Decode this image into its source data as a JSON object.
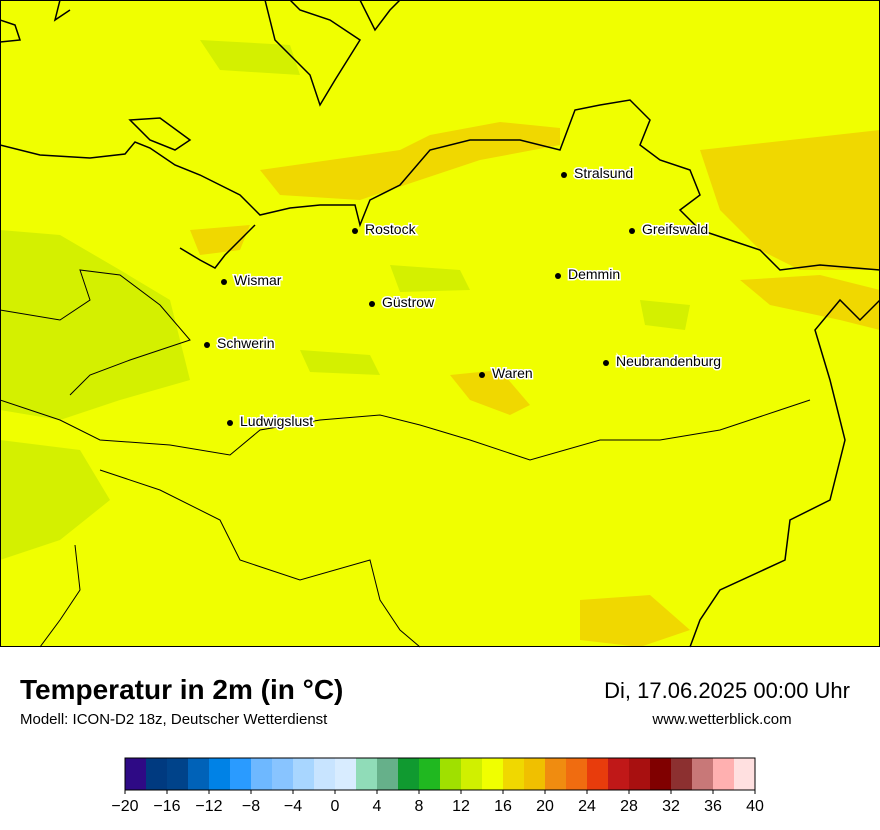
{
  "header": {
    "title": "Temperatur in 2m (in °C)",
    "subtitle": "Modell: ICON-D2 18z, Deutscher Wetterdienst",
    "datetime": "Di, 17.06.2025 00:00 Uhr",
    "website": "www.wetterblick.com"
  },
  "cities": [
    {
      "label": "Stralsund"
    },
    {
      "label": "Rostock"
    },
    {
      "label": "Greifswald"
    },
    {
      "label": "Wismar"
    },
    {
      "label": "Demmin"
    },
    {
      "label": "Güstrow"
    },
    {
      "label": "Schwerin"
    },
    {
      "label": "Neubrandenburg"
    },
    {
      "label": "Waren"
    },
    {
      "label": "Ludwigslust"
    }
  ],
  "colorbar": {
    "bins": [
      -20,
      -18,
      -16,
      -14,
      -12,
      -10,
      -8,
      -6,
      -4,
      -2,
      0,
      2,
      4,
      6,
      8,
      10,
      12,
      14,
      16,
      18,
      20,
      22,
      24,
      26,
      28,
      30,
      32,
      34,
      36,
      38,
      40
    ],
    "colors": [
      "#2e0a85",
      "#003a80",
      "#00438a",
      "#0062b8",
      "#0082e6",
      "#2a9bff",
      "#6eb8ff",
      "#88c4ff",
      "#a8d6ff",
      "#c8e4ff",
      "#d8ecff",
      "#90dcb8",
      "#66b08a",
      "#109a30",
      "#20b820",
      "#a0e000",
      "#d0f000",
      "#f0ff00",
      "#f0d800",
      "#f0c000",
      "#f08c10",
      "#f06c10",
      "#e83c0c",
      "#c01818",
      "#a81010",
      "#800000",
      "#8c3030",
      "#c87878",
      "#ffb0b0",
      "#ffe0e0"
    ],
    "ticks": [
      {
        "value": -20,
        "label": "−20"
      },
      {
        "value": -16,
        "label": "−16"
      },
      {
        "value": -12,
        "label": "−12"
      },
      {
        "value": -8,
        "label": "−8"
      },
      {
        "value": -4,
        "label": "−4"
      },
      0,
      4,
      8,
      12,
      16,
      20,
      24,
      28,
      32,
      36,
      40
    ]
  }
}
